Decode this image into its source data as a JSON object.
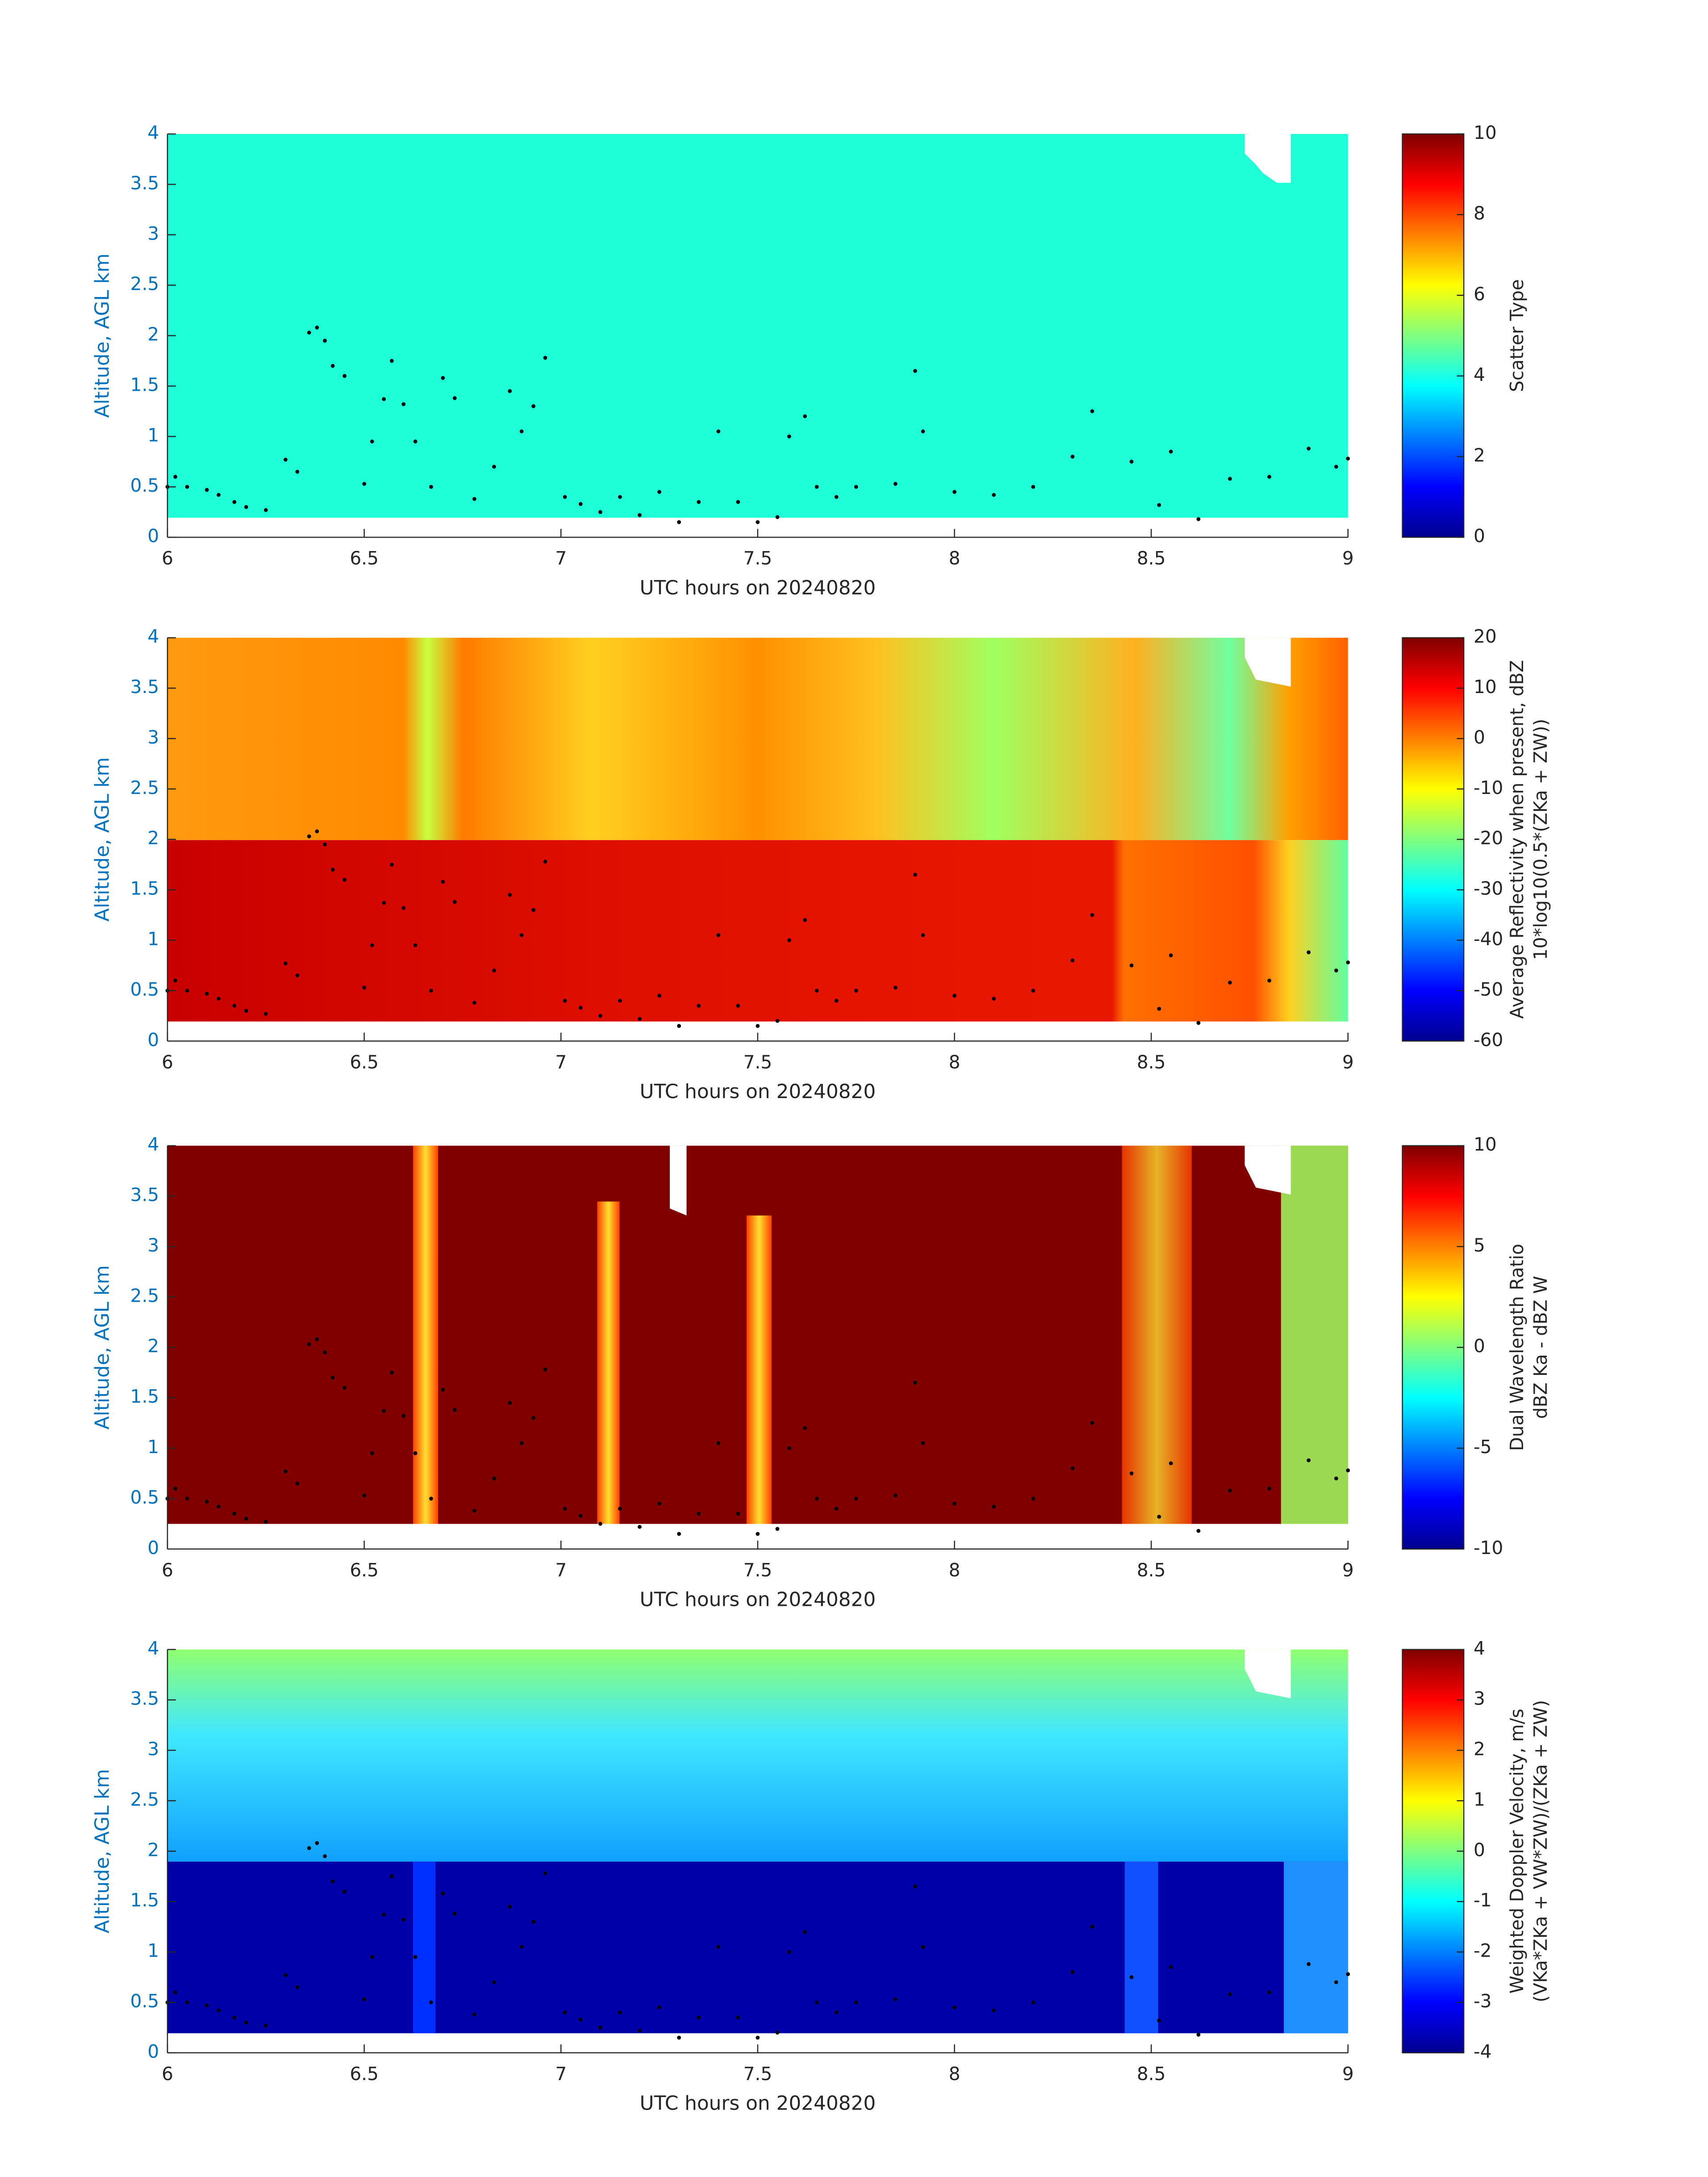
{
  "chart_data": [
    {
      "type": "heatmap",
      "ylabel": "Altitude, AGL km",
      "xlabel": "UTC hours on 20240820",
      "cbar_label": [
        "Scatter Type"
      ],
      "xlim": [
        6,
        9
      ],
      "xticks": [
        6,
        6.5,
        7,
        7.5,
        8,
        8.5,
        9
      ],
      "ylim": [
        0,
        4
      ],
      "yticks": [
        0,
        0.5,
        1,
        1.5,
        2,
        2.5,
        3,
        3.5,
        4
      ],
      "clim": [
        0,
        10
      ],
      "cticks": [
        0,
        2,
        4,
        6,
        8,
        10
      ],
      "point_color": "#000000",
      "x": [
        6.0,
        6.02,
        6.05,
        6.1,
        6.13,
        6.17,
        6.2,
        6.25,
        6.3,
        6.33,
        6.36,
        6.38,
        6.4,
        6.42,
        6.45,
        6.5,
        6.52,
        6.55,
        6.57,
        6.6,
        6.63,
        6.67,
        6.7,
        6.73,
        6.78,
        6.83,
        6.87,
        6.9,
        6.93,
        6.96,
        7.01,
        7.05,
        7.1,
        7.15,
        7.2,
        7.25,
        7.3,
        7.35,
        7.4,
        7.45,
        7.5,
        7.55,
        7.58,
        7.62,
        7.65,
        7.7,
        7.75,
        7.85,
        7.9,
        7.92,
        8.0,
        8.1,
        8.2,
        8.3,
        8.35,
        8.45,
        8.52,
        8.55,
        8.62,
        8.7,
        8.8,
        8.9,
        8.97,
        9.0
      ],
      "y": [
        0.5,
        0.6,
        0.5,
        0.47,
        0.42,
        0.35,
        0.3,
        0.27,
        0.77,
        0.65,
        2.03,
        2.08,
        1.95,
        1.7,
        1.6,
        0.53,
        0.95,
        1.37,
        1.75,
        1.32,
        0.95,
        0.5,
        1.58,
        1.38,
        0.38,
        0.7,
        1.45,
        1.05,
        1.3,
        1.78,
        0.4,
        0.33,
        0.25,
        0.4,
        0.22,
        0.45,
        0.15,
        0.35,
        1.05,
        0.35,
        0.15,
        0.2,
        1.0,
        1.2,
        0.5,
        0.4,
        0.5,
        0.53,
        1.65,
        1.05,
        0.45,
        0.42,
        0.5,
        0.8,
        1.25,
        0.75,
        0.32,
        0.85,
        0.18,
        0.58,
        0.6,
        0.88,
        0.7,
        0.78
      ]
    },
    {
      "type": "heatmap",
      "ylabel": "Altitude, AGL km",
      "xlabel": "UTC hours on 20240820",
      "cbar_label": [
        "Average Reflectivity when present, dBZ",
        "10*log10(0.5*(ZKa + ZW))"
      ],
      "xlim": [
        6,
        9
      ],
      "xticks": [
        6,
        6.5,
        7,
        7.5,
        8,
        8.5,
        9
      ],
      "ylim": [
        0,
        4
      ],
      "yticks": [
        0,
        0.5,
        1,
        1.5,
        2,
        2.5,
        3,
        3.5,
        4
      ],
      "clim": [
        -60,
        20
      ],
      "cticks": [
        -60,
        -50,
        -40,
        -30,
        -20,
        -10,
        0,
        10,
        20
      ],
      "point_color": "#000000",
      "x": [
        6.0,
        6.02,
        6.05,
        6.1,
        6.13,
        6.17,
        6.2,
        6.25,
        6.3,
        6.33,
        6.36,
        6.38,
        6.4,
        6.42,
        6.45,
        6.5,
        6.52,
        6.55,
        6.57,
        6.6,
        6.63,
        6.67,
        6.7,
        6.73,
        6.78,
        6.83,
        6.87,
        6.9,
        6.93,
        6.96,
        7.01,
        7.05,
        7.1,
        7.15,
        7.2,
        7.25,
        7.3,
        7.35,
        7.4,
        7.45,
        7.5,
        7.55,
        7.58,
        7.62,
        7.65,
        7.7,
        7.75,
        7.85,
        7.9,
        7.92,
        8.0,
        8.1,
        8.2,
        8.3,
        8.35,
        8.45,
        8.52,
        8.55,
        8.62,
        8.7,
        8.8,
        8.9,
        8.97,
        9.0
      ],
      "y": [
        0.5,
        0.6,
        0.5,
        0.47,
        0.42,
        0.35,
        0.3,
        0.27,
        0.77,
        0.65,
        2.03,
        2.08,
        1.95,
        1.7,
        1.6,
        0.53,
        0.95,
        1.37,
        1.75,
        1.32,
        0.95,
        0.5,
        1.58,
        1.38,
        0.38,
        0.7,
        1.45,
        1.05,
        1.3,
        1.78,
        0.4,
        0.33,
        0.25,
        0.4,
        0.22,
        0.45,
        0.15,
        0.35,
        1.05,
        0.35,
        0.15,
        0.2,
        1.0,
        1.2,
        0.5,
        0.4,
        0.5,
        0.53,
        1.65,
        1.05,
        0.45,
        0.42,
        0.5,
        0.8,
        1.25,
        0.75,
        0.32,
        0.85,
        0.18,
        0.58,
        0.6,
        0.88,
        0.7,
        0.78
      ]
    },
    {
      "type": "heatmap",
      "ylabel": "Altitude, AGL km",
      "xlabel": "UTC hours on 20240820",
      "cbar_label": [
        "Dual Wavelength Ratio",
        "dBZ Ka - dBZ W"
      ],
      "xlim": [
        6,
        9
      ],
      "xticks": [
        6,
        6.5,
        7,
        7.5,
        8,
        8.5,
        9
      ],
      "ylim": [
        0,
        4
      ],
      "yticks": [
        0,
        0.5,
        1,
        1.5,
        2,
        2.5,
        3,
        3.5,
        4
      ],
      "clim": [
        -10,
        10
      ],
      "cticks": [
        -10,
        -5,
        0,
        5,
        10
      ],
      "point_color": "#000000",
      "x": [
        6.0,
        6.02,
        6.05,
        6.1,
        6.13,
        6.17,
        6.2,
        6.25,
        6.3,
        6.33,
        6.36,
        6.38,
        6.4,
        6.42,
        6.45,
        6.5,
        6.52,
        6.55,
        6.57,
        6.6,
        6.63,
        6.67,
        6.7,
        6.73,
        6.78,
        6.83,
        6.87,
        6.9,
        6.93,
        6.96,
        7.01,
        7.05,
        7.1,
        7.15,
        7.2,
        7.25,
        7.3,
        7.35,
        7.4,
        7.45,
        7.5,
        7.55,
        7.58,
        7.62,
        7.65,
        7.7,
        7.75,
        7.85,
        7.9,
        7.92,
        8.0,
        8.1,
        8.2,
        8.3,
        8.35,
        8.45,
        8.52,
        8.55,
        8.62,
        8.7,
        8.8,
        8.9,
        8.97,
        9.0
      ],
      "y": [
        0.5,
        0.6,
        0.5,
        0.47,
        0.42,
        0.35,
        0.3,
        0.27,
        0.77,
        0.65,
        2.03,
        2.08,
        1.95,
        1.7,
        1.6,
        0.53,
        0.95,
        1.37,
        1.75,
        1.32,
        0.95,
        0.5,
        1.58,
        1.38,
        0.38,
        0.7,
        1.45,
        1.05,
        1.3,
        1.78,
        0.4,
        0.33,
        0.25,
        0.4,
        0.22,
        0.45,
        0.15,
        0.35,
        1.05,
        0.35,
        0.15,
        0.2,
        1.0,
        1.2,
        0.5,
        0.4,
        0.5,
        0.53,
        1.65,
        1.05,
        0.45,
        0.42,
        0.5,
        0.8,
        1.25,
        0.75,
        0.32,
        0.85,
        0.18,
        0.58,
        0.6,
        0.88,
        0.7,
        0.78
      ]
    },
    {
      "type": "heatmap",
      "ylabel": "Altitude, AGL km",
      "xlabel": "UTC hours on 20240820",
      "cbar_label": [
        "Weighted Doppler Velocity, m/s",
        "(VKa*ZKa + VW*ZW)/(ZKa + ZW)"
      ],
      "xlim": [
        6,
        9
      ],
      "xticks": [
        6,
        6.5,
        7,
        7.5,
        8,
        8.5,
        9
      ],
      "ylim": [
        0,
        4
      ],
      "yticks": [
        0,
        0.5,
        1,
        1.5,
        2,
        2.5,
        3,
        3.5,
        4
      ],
      "clim": [
        -4,
        4
      ],
      "cticks": [
        -4,
        -3,
        -2,
        -1,
        0,
        1,
        2,
        3,
        4
      ],
      "point_color": "#000000",
      "x": [
        6.0,
        6.02,
        6.05,
        6.1,
        6.13,
        6.17,
        6.2,
        6.25,
        6.3,
        6.33,
        6.36,
        6.38,
        6.4,
        6.42,
        6.45,
        6.5,
        6.52,
        6.55,
        6.57,
        6.6,
        6.63,
        6.67,
        6.7,
        6.73,
        6.78,
        6.83,
        6.87,
        6.9,
        6.93,
        6.96,
        7.01,
        7.05,
        7.1,
        7.15,
        7.2,
        7.25,
        7.3,
        7.35,
        7.4,
        7.45,
        7.5,
        7.55,
        7.58,
        7.62,
        7.65,
        7.7,
        7.75,
        7.85,
        7.9,
        7.92,
        8.0,
        8.1,
        8.2,
        8.3,
        8.35,
        8.45,
        8.52,
        8.55,
        8.62,
        8.7,
        8.8,
        8.9,
        8.97,
        9.0
      ],
      "y": [
        0.5,
        0.6,
        0.5,
        0.47,
        0.42,
        0.35,
        0.3,
        0.27,
        0.77,
        0.65,
        2.03,
        2.08,
        1.95,
        1.7,
        1.6,
        0.53,
        0.95,
        1.37,
        1.75,
        1.32,
        0.95,
        0.5,
        1.58,
        1.38,
        0.38,
        0.7,
        1.45,
        1.05,
        1.3,
        1.78,
        0.4,
        0.33,
        0.25,
        0.4,
        0.22,
        0.45,
        0.15,
        0.35,
        1.05,
        0.35,
        0.15,
        0.2,
        1.0,
        1.2,
        0.5,
        0.4,
        0.5,
        0.53,
        1.65,
        1.05,
        0.45,
        0.42,
        0.5,
        0.8,
        1.25,
        0.75,
        0.32,
        0.85,
        0.18,
        0.58,
        0.6,
        0.88,
        0.7,
        0.78
      ]
    }
  ]
}
